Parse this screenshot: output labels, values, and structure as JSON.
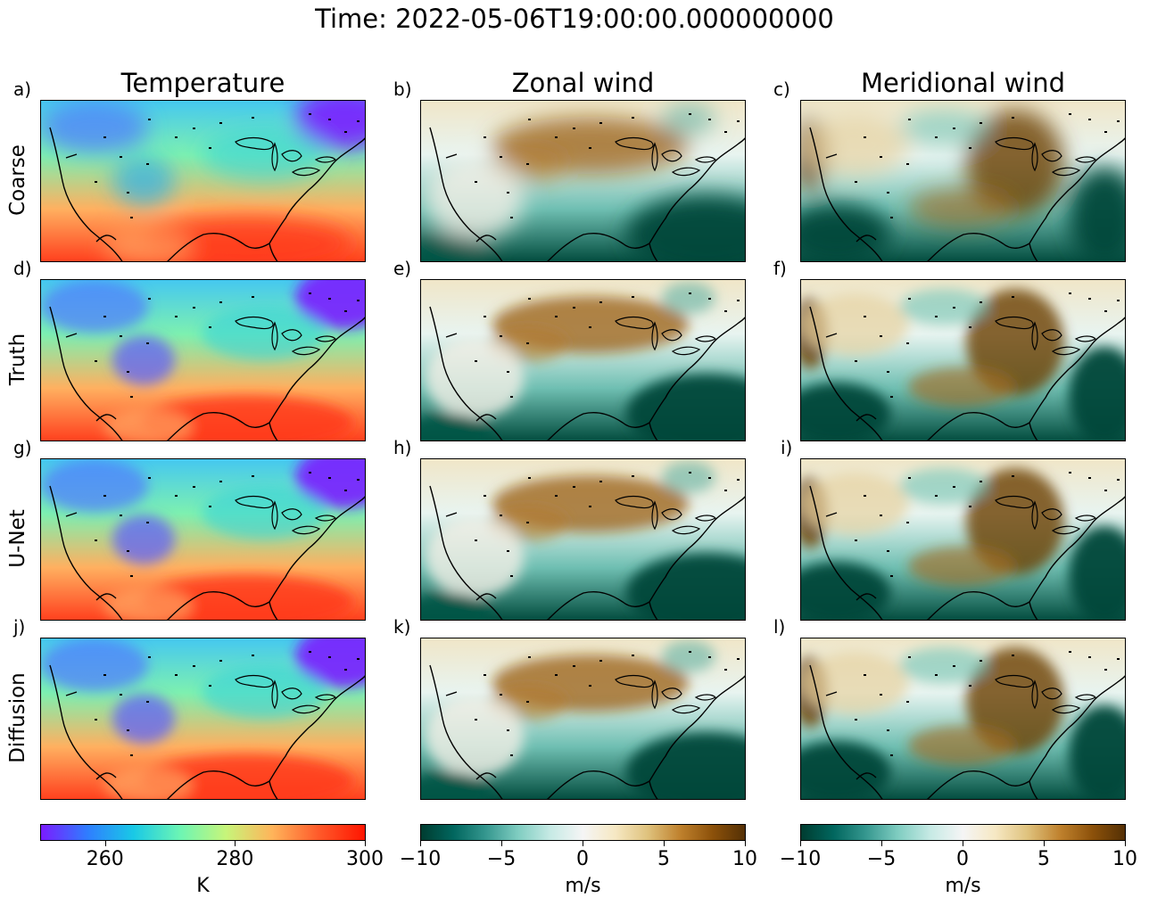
{
  "title": "Time: 2022-05-06T19:00:00.000000000",
  "columns": [
    {
      "key": "temperature",
      "title": "Temperature"
    },
    {
      "key": "zonal",
      "title": "Zonal wind"
    },
    {
      "key": "meridional",
      "title": "Meridional wind"
    }
  ],
  "rows": [
    "Coarse",
    "Truth",
    "U-Net",
    "Diffusion"
  ],
  "panel_letters": [
    "a)",
    "b)",
    "c)",
    "d)",
    "e)",
    "f)",
    "g)",
    "h)",
    "i)",
    "j)",
    "k)",
    "l)"
  ],
  "colorbars": [
    {
      "label": "K",
      "ticks": [
        "260",
        "280",
        "300"
      ],
      "tick_values": [
        260,
        280,
        300
      ],
      "range": [
        250,
        300
      ],
      "colormap": "rainbow",
      "colors": [
        "#7a1cff",
        "#2f7dff",
        "#19c9e6",
        "#6cf5b4",
        "#c7f57a",
        "#ffb45a",
        "#ff5a2a",
        "#ff1500"
      ]
    },
    {
      "label": "m/s",
      "ticks": [
        "−10",
        "−5",
        "0",
        "5",
        "10"
      ],
      "tick_values": [
        -10,
        -5,
        0,
        5,
        10
      ],
      "range": [
        -10,
        10
      ],
      "colormap": "BrBG_r",
      "colors": [
        "#003c30",
        "#01665e",
        "#35978f",
        "#80cdc1",
        "#c7eae5",
        "#f5f5f5",
        "#f6e8c3",
        "#dfc27d",
        "#bf812d",
        "#8c510a",
        "#543005"
      ]
    },
    {
      "label": "m/s",
      "ticks": [
        "−10",
        "−5",
        "0",
        "5",
        "10"
      ],
      "tick_values": [
        -10,
        -5,
        0,
        5,
        10
      ],
      "range": [
        -10,
        10
      ],
      "colormap": "BrBG_r",
      "colors": [
        "#003c30",
        "#01665e",
        "#35978f",
        "#80cdc1",
        "#c7eae5",
        "#f5f5f5",
        "#f6e8c3",
        "#dfc27d",
        "#bf812d",
        "#8c510a",
        "#543005"
      ]
    }
  ],
  "chart_data": {
    "type": "heatmap",
    "title": "Time: 2022-05-06T19:00:00.000000000",
    "panels_grid": {
      "rows": [
        "Coarse",
        "Truth",
        "U-Net",
        "Diffusion"
      ],
      "columns": [
        "Temperature",
        "Zonal wind",
        "Meridional wind"
      ]
    },
    "temperature": {
      "unit": "K",
      "vmin": 250,
      "vmax": 300,
      "colormap": "rainbow"
    },
    "zonal_wind": {
      "unit": "m/s",
      "vmin": -10,
      "vmax": 10,
      "colormap": "BrBG_r"
    },
    "meridional_wind": {
      "unit": "m/s",
      "vmin": -10,
      "vmax": 10,
      "colormap": "BrBG_r"
    },
    "map_region": "Continental United States with coastlines and Great Lakes"
  }
}
